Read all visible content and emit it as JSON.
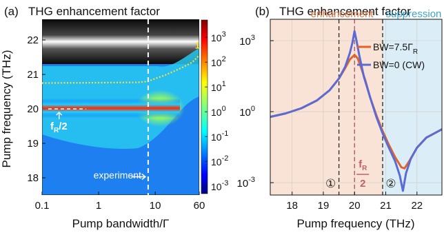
{
  "chart_data": [
    {
      "type": "heatmap",
      "panel_label": "(a)",
      "title": "THG enhancement factor",
      "xlabel": "Pump bandwidth/Γ",
      "ylabel": "Pump frequency (THz)",
      "x_scale": "log",
      "xlim": [
        0.1,
        60
      ],
      "ylim": [
        17.5,
        22.6
      ],
      "xticks": [
        0.1,
        1,
        10,
        60
      ],
      "xtick_labels": [
        "0.1",
        "1",
        "10",
        "60"
      ],
      "yticks": [
        18,
        19,
        20,
        21,
        22
      ],
      "ytick_labels": [
        "18",
        "19",
        "20",
        "21",
        "22"
      ],
      "colorbar": {
        "scale": "log",
        "range": [
          0.0005,
          5000
        ],
        "ticks": [
          0.001,
          0.01,
          0.1,
          1,
          10,
          100,
          1000
        ],
        "tick_bases": [
          "10",
          "10",
          "10",
          "10",
          "10",
          "10",
          "10"
        ],
        "tick_exps": [
          "-3",
          "-2",
          "-1",
          "0",
          "1",
          "2",
          "3"
        ]
      },
      "resonance_curve": {
        "label": "1",
        "x": [
          0.1,
          1,
          5,
          7.5,
          10,
          15,
          20,
          30,
          45,
          60
        ],
        "y": [
          20.75,
          20.76,
          20.77,
          20.8,
          20.88,
          20.98,
          21.07,
          21.2,
          21.35,
          21.55
        ]
      },
      "experiment_line": {
        "x": 7.5,
        "label": "experiment"
      },
      "fR_half": {
        "y": 20.0,
        "label_main": "f",
        "label_sub": "R",
        "label_tail": "/2"
      }
    },
    {
      "type": "line",
      "panel_label": "(b)",
      "title": "THG enhancement factor",
      "xlabel": "Pump frequency (THz)",
      "x_scale": "linear",
      "y_scale": "log",
      "xlim": [
        17.3,
        22.8
      ],
      "ylim": [
        0.0003,
        8000
      ],
      "xticks": [
        18,
        19,
        20,
        21,
        22
      ],
      "xtick_labels": [
        "18",
        "19",
        "20",
        "21",
        "22"
      ],
      "yticks": [
        0.001,
        1,
        1000
      ],
      "ytick_bases": [
        "10",
        "10",
        "10"
      ],
      "ytick_exps": [
        "-3",
        "0",
        "3"
      ],
      "regions": [
        {
          "label": "enhancement",
          "x": [
            17.3,
            20.9
          ],
          "color": "#f8e3d6",
          "text_color": "#e8773f"
        },
        {
          "label": "suppression",
          "x": [
            20.9,
            22.8
          ],
          "color": "#dbeef7",
          "text_color": "#3aa6d2"
        }
      ],
      "vlines": [
        {
          "x": 19.5,
          "color": "#333333",
          "marker": "①"
        },
        {
          "x": 20.0,
          "color": "#b05a6a",
          "label_main": "f",
          "label_sub": "R",
          "label_den": "2"
        },
        {
          "x": 20.9,
          "color": "#333333",
          "marker": "②"
        }
      ],
      "series": [
        {
          "name_main": "BW=7.5Γ",
          "name_sub": "R",
          "color": "#e0622d",
          "x": [
            17.3,
            17.8,
            18.3,
            18.8,
            19.2,
            19.5,
            19.7,
            19.85,
            20.0,
            20.1,
            20.2,
            20.35,
            20.5,
            20.7,
            20.9,
            21.1,
            21.3,
            21.5,
            21.6,
            21.75,
            22.0,
            22.3,
            22.8
          ],
          "y": [
            0.6,
            0.85,
            1.4,
            3.0,
            8.0,
            25,
            70,
            160,
            250,
            180,
            80,
            20,
            4.0,
            0.7,
            0.15,
            0.04,
            0.012,
            0.0045,
            0.004,
            0.008,
            0.03,
            0.08,
            0.18
          ]
        },
        {
          "name_main": "BW=0 (CW)",
          "color": "#5b6bd4",
          "x": [
            17.3,
            17.8,
            18.3,
            18.8,
            19.2,
            19.5,
            19.7,
            19.85,
            19.93,
            20.0,
            20.07,
            20.15,
            20.3,
            20.5,
            20.7,
            20.9,
            21.1,
            21.3,
            21.45,
            21.55,
            21.65,
            21.8,
            22.0,
            22.3,
            22.8
          ],
          "y": [
            0.6,
            0.85,
            1.4,
            3.0,
            8.0,
            25,
            80,
            300,
            800,
            2500,
            900,
            250,
            30,
            4.0,
            0.6,
            0.12,
            0.03,
            0.008,
            0.002,
            0.00045,
            0.0025,
            0.01,
            0.03,
            0.08,
            0.18
          ]
        }
      ]
    }
  ]
}
